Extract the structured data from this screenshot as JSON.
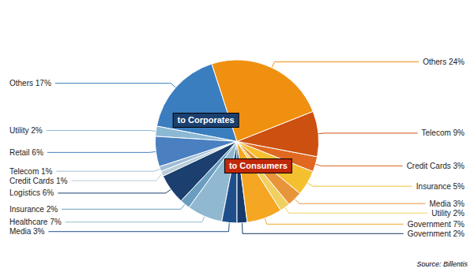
{
  "chart_data": {
    "type": "pie",
    "series": [
      {
        "name": "to Corporates",
        "color": "#1B3F6E",
        "categories": [
          "Others 17%",
          "Utility 2%",
          "Retail 6%",
          "Telecom 1%",
          "Credit Cards 1%",
          "Logistics 6%",
          "Insurance 2%",
          "Healthcare 7%",
          "Media 3%",
          "Government 2%"
        ],
        "values": [
          17,
          2,
          6,
          1,
          1,
          6,
          2,
          7,
          3,
          2
        ],
        "colors": [
          "#3A7EC0",
          "#8CB8D4",
          "#4A80C0",
          "#A0BDD4",
          "#B8CDD8",
          "#1B3F6E",
          "#6A9EC0",
          "#90B8D0",
          "#1E4F8A",
          "#163A6A"
        ]
      },
      {
        "name": "to Consumers",
        "color": "#C0280A",
        "categories": [
          "Government 7%",
          "Utility 2%",
          "Media 3%",
          "Insurance 5%",
          "Credit Cards 3%",
          "Telecom 9%",
          "Others 24%"
        ],
        "values": [
          7,
          2,
          3,
          5,
          3,
          9,
          24
        ],
        "colors": [
          "#F5A623",
          "#F0D060",
          "#E8943A",
          "#F5C030",
          "#E06820",
          "#CC5010",
          "#F09010"
        ]
      }
    ],
    "annotations": [
      "Source: Billentis"
    ]
  }
}
